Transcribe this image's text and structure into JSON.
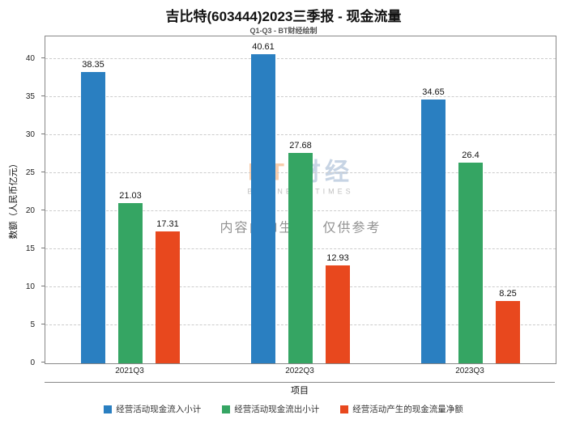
{
  "page": {
    "title": "吉比特(603444)2023三季报 - 现金流量",
    "subtitle": "Q1-Q3 - BT财经绘制"
  },
  "watermark": {
    "logo_bt": "BT",
    "logo_cn": "财经",
    "sub": "BUSINESS TIMES",
    "notice": "内容由AI生成，仅供参考"
  },
  "chart_data": {
    "type": "bar",
    "title": "吉比特(603444)2023三季报 - 现金流量",
    "subtitle": "Q1-Q3 - BT财经绘制",
    "categories": [
      "2021Q3",
      "2022Q3",
      "2023Q3"
    ],
    "series": [
      {
        "name": "经营活动现金流入小计",
        "color": "#2a7fc1",
        "values": [
          38.35,
          40.61,
          34.65
        ]
      },
      {
        "name": "经营活动现金流出小计",
        "color": "#35a563",
        "values": [
          21.03,
          27.68,
          26.4
        ]
      },
      {
        "name": "经营活动产生的现金流量净额",
        "color": "#e8481e",
        "values": [
          17.31,
          12.93,
          8.25
        ]
      }
    ],
    "xlabel": "项目",
    "ylabel": "数额（人民币亿元）",
    "ylim": [
      0,
      43
    ],
    "yticks": [
      0,
      5,
      10,
      15,
      20,
      25,
      30,
      35,
      40
    ],
    "grid": true,
    "legend_position": "bottom"
  }
}
